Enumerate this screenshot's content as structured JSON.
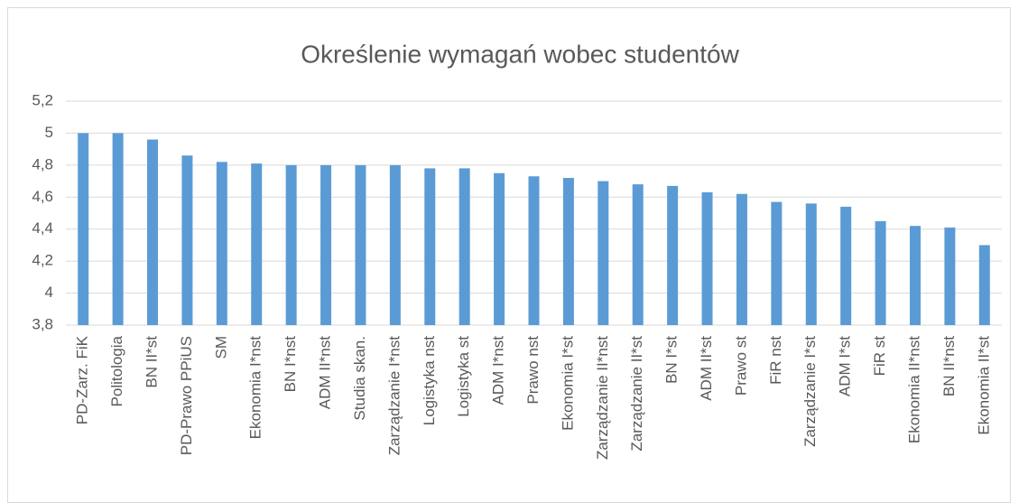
{
  "chart_data": {
    "type": "bar",
    "title": "Określenie wymagań wobec studentów",
    "categories": [
      "PD-Zarz. FiK",
      "Politologia",
      "BN II*st",
      "PD-Prawo PPiUS",
      "SM",
      "Ekonomia I*nst",
      "BN I*nst",
      "ADM II*nst",
      "Studia skan.",
      "Zarządzanie I*nst",
      "Logistyka nst",
      "Logistyka st",
      "ADM I*nst",
      "Prawo nst",
      "Ekonomia I*st",
      "Zarządzanie II*nst",
      "Zarządzanie II*st",
      "BN I*st",
      "ADM II*st",
      "Prawo st",
      "FiR nst",
      "Zarządzanie I*st",
      "ADM I*st",
      "FiR st",
      "Ekonomia II*nst",
      "BN II*nst",
      "Ekonomia II*st"
    ],
    "values": [
      5,
      5,
      4.96,
      4.86,
      4.82,
      4.81,
      4.8,
      4.8,
      4.8,
      4.8,
      4.78,
      4.78,
      4.75,
      4.73,
      4.72,
      4.7,
      4.68,
      4.67,
      4.63,
      4.62,
      4.57,
      4.56,
      4.54,
      4.45,
      4.42,
      4.41,
      4.3
    ],
    "color": "#5b9bd5",
    "ylim": [
      3.8,
      5.2
    ],
    "yticks": [
      {
        "value": 3.8,
        "label": "3,8"
      },
      4,
      {
        "value": 4.2,
        "label": "4,2"
      },
      {
        "value": 4.4,
        "label": "4,4"
      },
      {
        "value": 4.6,
        "label": "4,6"
      },
      {
        "value": 4.8,
        "label": "4,8"
      },
      5,
      {
        "value": 5.2,
        "label": "5,2"
      }
    ],
    "grid": true
  }
}
